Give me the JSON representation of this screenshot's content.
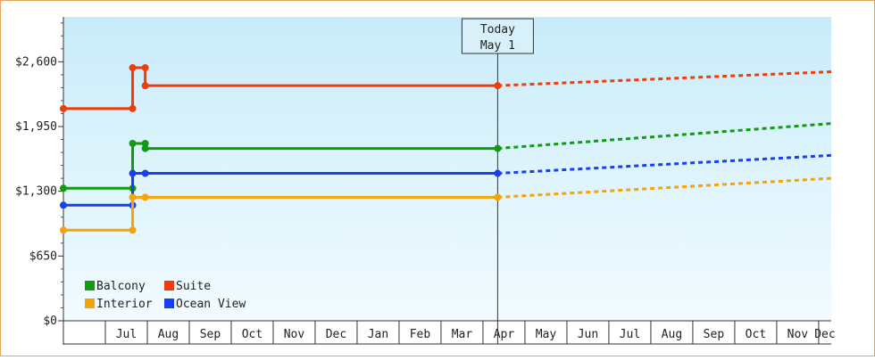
{
  "chart_data": {
    "type": "line",
    "title": "",
    "xlabel": "",
    "ylabel": "",
    "y_ticks": [
      {
        "value": 0,
        "label": "$0"
      },
      {
        "value": 650,
        "label": "$650"
      },
      {
        "value": 1300,
        "label": "$1,300"
      },
      {
        "value": 1950,
        "label": "$1,950"
      },
      {
        "value": 2600,
        "label": "$2,600"
      }
    ],
    "ylim": [
      0,
      3050
    ],
    "x_months": [
      "",
      "Jul",
      "Aug",
      "Sep",
      "Oct",
      "Nov",
      "Dec",
      "Jan",
      "Feb",
      "Mar",
      "Apr",
      "May",
      "Jun",
      "Jul",
      "Aug",
      "Sep",
      "Oct",
      "Nov",
      "Dec"
    ],
    "xlim": [
      0,
      18.3
    ],
    "today": {
      "line1": "Today",
      "line2": "May 1",
      "x": 10.35
    },
    "series": [
      {
        "name": "Suite",
        "color": "#f03c0a",
        "points": [
          [
            0,
            2130
          ],
          [
            1.65,
            2130
          ],
          [
            1.65,
            2540
          ],
          [
            1.95,
            2540
          ],
          [
            1.95,
            2360
          ],
          [
            10.35,
            2360
          ]
        ],
        "forecast": [
          [
            10.35,
            2360
          ],
          [
            18.3,
            2500
          ]
        ]
      },
      {
        "name": "Balcony",
        "color": "#119b11",
        "points": [
          [
            0,
            1330
          ],
          [
            1.65,
            1330
          ],
          [
            1.65,
            1780
          ],
          [
            1.95,
            1780
          ],
          [
            1.95,
            1730
          ],
          [
            10.35,
            1730
          ]
        ],
        "forecast": [
          [
            10.35,
            1730
          ],
          [
            18.3,
            1980
          ]
        ]
      },
      {
        "name": "Ocean View",
        "color": "#1a3ef0",
        "points": [
          [
            0,
            1160
          ],
          [
            1.65,
            1160
          ],
          [
            1.65,
            1480
          ],
          [
            1.95,
            1480
          ],
          [
            10.35,
            1480
          ]
        ],
        "forecast": [
          [
            10.35,
            1480
          ],
          [
            18.3,
            1660
          ]
        ]
      },
      {
        "name": "Interior",
        "color": "#f5a30a",
        "points": [
          [
            0,
            910
          ],
          [
            1.65,
            910
          ],
          [
            1.65,
            1240
          ],
          [
            1.95,
            1240
          ],
          [
            10.35,
            1240
          ]
        ],
        "forecast": [
          [
            10.35,
            1240
          ],
          [
            18.3,
            1430
          ]
        ]
      }
    ],
    "legend": [
      {
        "label": "Balcony",
        "color": "#119b11"
      },
      {
        "label": "Suite",
        "color": "#f03c0a"
      },
      {
        "label": "Interior",
        "color": "#f5a30a"
      },
      {
        "label": "Ocean View",
        "color": "#1a3ef0"
      }
    ],
    "legend_position": "bottom-left",
    "background": {
      "top": "#c9ecfa",
      "bottom": "#f2fbff"
    }
  }
}
